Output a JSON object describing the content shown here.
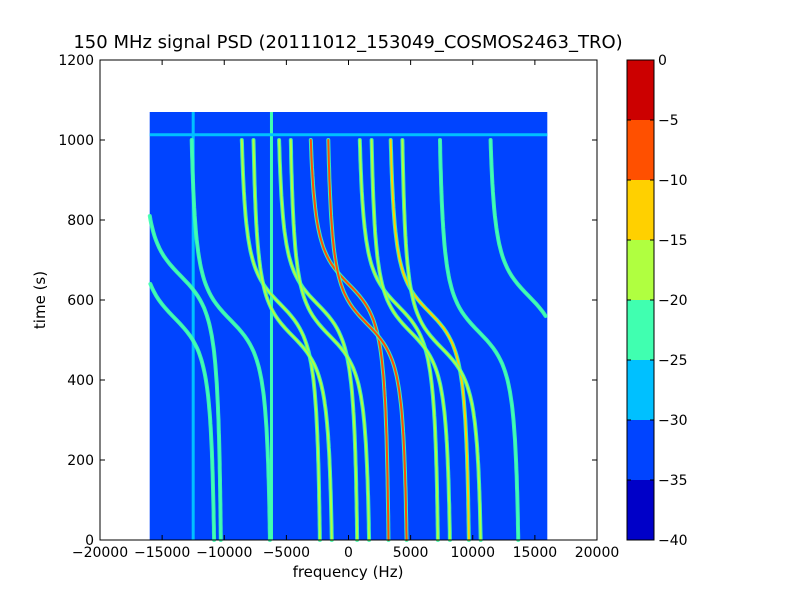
{
  "chart_data": {
    "type": "heatmap",
    "title": "150 MHz signal PSD (20111012_153049_COSMOS2463_TRO)",
    "xlabel": "frequency (Hz)",
    "ylabel": "time (s)",
    "xlim": [
      -20000,
      20000
    ],
    "ylim": [
      0,
      1200
    ],
    "x_ticks": [
      -20000,
      -15000,
      -10000,
      -5000,
      0,
      5000,
      10000,
      15000,
      20000
    ],
    "x_tick_labels": [
      "−20000",
      "−15000",
      "−10000",
      "−5000",
      "0",
      "5000",
      "10000",
      "15000",
      "20000"
    ],
    "y_ticks": [
      0,
      200,
      400,
      600,
      800,
      1000,
      1200
    ],
    "y_tick_labels": [
      "0",
      "200",
      "400",
      "600",
      "800",
      "1000",
      "1200"
    ],
    "data_extent": {
      "x": [
        -16000,
        16000
      ],
      "y": [
        0,
        1070
      ]
    },
    "background_level": -32.5,
    "colorbar": {
      "range": [
        -40,
        0
      ],
      "levels": [
        -40,
        -35,
        -30,
        -25,
        -20,
        -15,
        -10,
        -5,
        0
      ],
      "tick_labels": [
        "−40",
        "−35",
        "−30",
        "−25",
        "−20",
        "−15",
        "−10",
        "−5",
        "0"
      ],
      "colors": [
        "#0000c8",
        "#0044ff",
        "#00c0ff",
        "#40ffb0",
        "#b0ff40",
        "#ffd000",
        "#ff5000",
        "#cc0000"
      ]
    },
    "steady_lines": [
      {
        "orientation": "vertical",
        "x": -12500,
        "y": [
          0,
          1070
        ],
        "level": -27
      },
      {
        "orientation": "vertical",
        "x": -6200,
        "y": [
          0,
          1070
        ],
        "level": -24
      },
      {
        "orientation": "horizontal",
        "y": 1013,
        "x": [
          -16000,
          16000
        ],
        "level": -26
      }
    ],
    "doppler_tracks": [
      {
        "center_time": 555,
        "center_freq": -14000,
        "level": -21
      },
      {
        "center_time": 660,
        "center_freq": -13500,
        "level": -24
      },
      {
        "center_time": 550,
        "center_freq": -9500,
        "level": -24
      },
      {
        "center_time": 590,
        "center_freq": -5500,
        "level": -16
      },
      {
        "center_time": 510,
        "center_freq": -4500,
        "level": -20
      },
      {
        "center_time": 590,
        "center_freq": -2500,
        "level": -18
      },
      {
        "center_time": 510,
        "center_freq": -1500,
        "level": -19
      },
      {
        "center_time": 640,
        "center_freq": 0,
        "level": -8
      },
      {
        "center_time": 540,
        "center_freq": 1500,
        "level": -10
      },
      {
        "center_time": 585,
        "center_freq": 4000,
        "level": -16
      },
      {
        "center_time": 520,
        "center_freq": 5000,
        "level": -18
      },
      {
        "center_time": 570,
        "center_freq": 6500,
        "level": -12
      },
      {
        "center_time": 480,
        "center_freq": 7500,
        "level": -20
      },
      {
        "center_time": 520,
        "center_freq": 10500,
        "level": -22
      },
      {
        "center_time": 610,
        "center_freq": 14500,
        "level": -22
      }
    ]
  }
}
